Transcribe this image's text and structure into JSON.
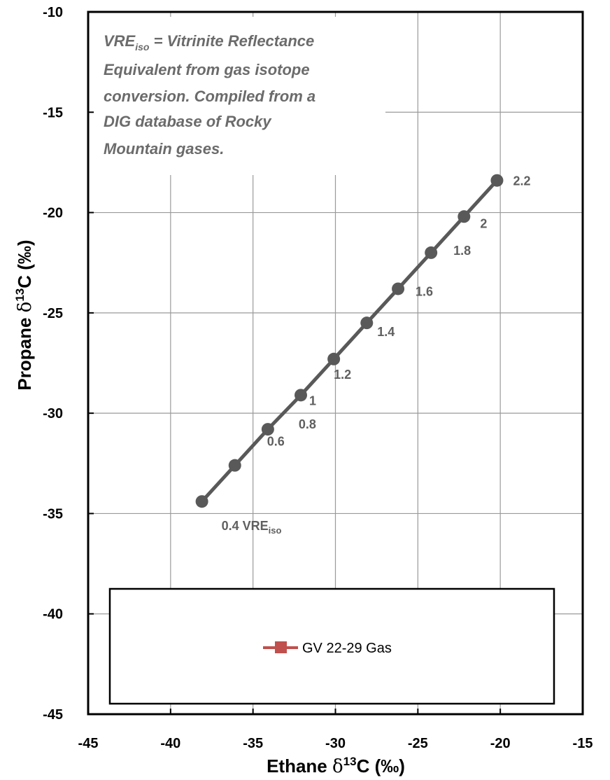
{
  "chart_data": {
    "type": "line",
    "xlabel_prefix": "Ethane ",
    "xlabel_symbol": "δ",
    "xlabel_sup": "13",
    "xlabel_suffix": "C (‰)",
    "ylabel_prefix": "Propane ",
    "ylabel_symbol": "δ",
    "ylabel_sup": "13",
    "ylabel_suffix": "C (‰)",
    "xlim": [
      -45,
      -15
    ],
    "ylim": [
      -45,
      -10
    ],
    "x_ticks": [
      -45,
      -40,
      -35,
      -30,
      -25,
      -20,
      -15
    ],
    "y_ticks": [
      -10,
      -15,
      -20,
      -25,
      -30,
      -35,
      -40,
      -45
    ],
    "x_tick_labels": [
      "-45",
      "-40",
      "-35",
      "-30",
      "-25",
      "-20",
      "-15"
    ],
    "y_tick_labels": [
      "-10",
      "-15",
      "-20",
      "-25",
      "-30",
      "-35",
      "-40",
      "-45"
    ],
    "grid": true,
    "series": [
      {
        "color": "#595959",
        "x": [
          -38.1,
          -36.1,
          -34.1,
          -32.1,
          -30.1,
          -28.1,
          -26.2,
          -24.2,
          -22.2,
          -20.2
        ],
        "y": [
          -34.4,
          -32.6,
          -30.8,
          -29.1,
          -27.3,
          -25.5,
          -23.8,
          -22.0,
          -20.2,
          -18.4
        ],
        "point_labels": [
          "0.4 VRE",
          "0.6",
          "0.8",
          "1",
          "1.2",
          "1.4",
          "1.6",
          "1.8",
          "2",
          "2.2"
        ],
        "first_label_sub": "iso"
      },
      {
        "name": "GV 22-29 Gas",
        "color": "#c0504d",
        "x": [],
        "y": []
      }
    ],
    "legend": {
      "placement": "bottom",
      "entries": [
        "GV 22-29 Gas"
      ]
    },
    "annotation": {
      "line1_prefix": "VRE",
      "line1_sub": "iso",
      "line1_suffix": " = Vitrinite Reflectance",
      "line2": "Equivalent from gas isotope",
      "line3": "conversion.  Compiled from a",
      "line4": "DIG database of Rocky",
      "line5": "Mountain  gases."
    }
  }
}
